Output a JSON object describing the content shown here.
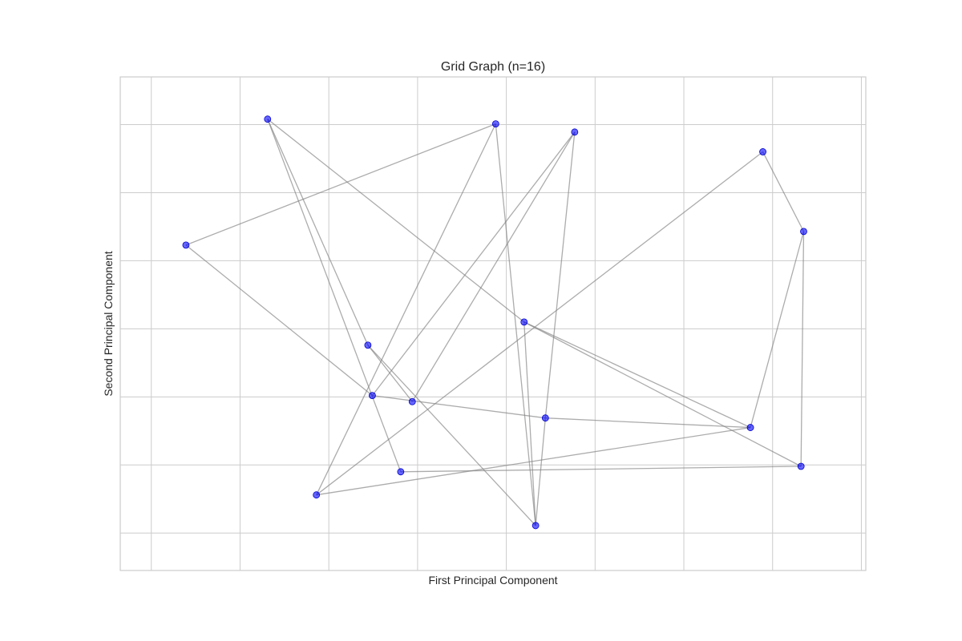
{
  "chart_data": {
    "type": "scatter",
    "title": "Grid Graph (n=16)",
    "xlabel": "First Principal Component",
    "ylabel": "Second Principal Component",
    "xlim": [
      -1.0,
      7.4
    ],
    "ylim": [
      -1.35,
      5.9
    ],
    "grid": true,
    "x_gridlines": [
      -0.65,
      0.35,
      1.35,
      2.35,
      3.35,
      4.35,
      5.35,
      6.35,
      7.35
    ],
    "y_gridlines": [
      -0.8,
      0.2,
      1.2,
      2.2,
      3.2,
      4.2,
      5.2
    ],
    "show_tick_labels": false,
    "node_color": "#0000ff",
    "edge_color": "#808080",
    "nodes": [
      {
        "id": 0,
        "x": 0.66,
        "y": 5.28
      },
      {
        "id": 1,
        "x": 3.23,
        "y": 5.21
      },
      {
        "id": 2,
        "x": 4.12,
        "y": 5.09
      },
      {
        "id": 3,
        "x": 6.24,
        "y": 4.8
      },
      {
        "id": 4,
        "x": -0.26,
        "y": 3.43
      },
      {
        "id": 5,
        "x": 6.7,
        "y": 3.63
      },
      {
        "id": 6,
        "x": 3.55,
        "y": 2.3
      },
      {
        "id": 7,
        "x": 1.79,
        "y": 1.96
      },
      {
        "id": 8,
        "x": 1.84,
        "y": 1.22
      },
      {
        "id": 9,
        "x": 2.29,
        "y": 1.13
      },
      {
        "id": 10,
        "x": 3.79,
        "y": 0.89
      },
      {
        "id": 11,
        "x": 6.1,
        "y": 0.75
      },
      {
        "id": 12,
        "x": 6.67,
        "y": 0.18
      },
      {
        "id": 13,
        "x": 2.16,
        "y": 0.1
      },
      {
        "id": 14,
        "x": 1.21,
        "y": -0.24
      },
      {
        "id": 15,
        "x": 3.68,
        "y": -0.69
      }
    ],
    "edges": [
      [
        0,
        13
      ],
      [
        0,
        6
      ],
      [
        0,
        7
      ],
      [
        1,
        4
      ],
      [
        1,
        14
      ],
      [
        1,
        15
      ],
      [
        2,
        8
      ],
      [
        2,
        9
      ],
      [
        2,
        10
      ],
      [
        3,
        5
      ],
      [
        3,
        14
      ],
      [
        4,
        8
      ],
      [
        5,
        12
      ],
      [
        5,
        11
      ],
      [
        6,
        11
      ],
      [
        6,
        12
      ],
      [
        6,
        15
      ],
      [
        7,
        9
      ],
      [
        7,
        15
      ],
      [
        8,
        10
      ],
      [
        10,
        11
      ],
      [
        10,
        15
      ],
      [
        12,
        13
      ],
      [
        11,
        14
      ]
    ]
  }
}
